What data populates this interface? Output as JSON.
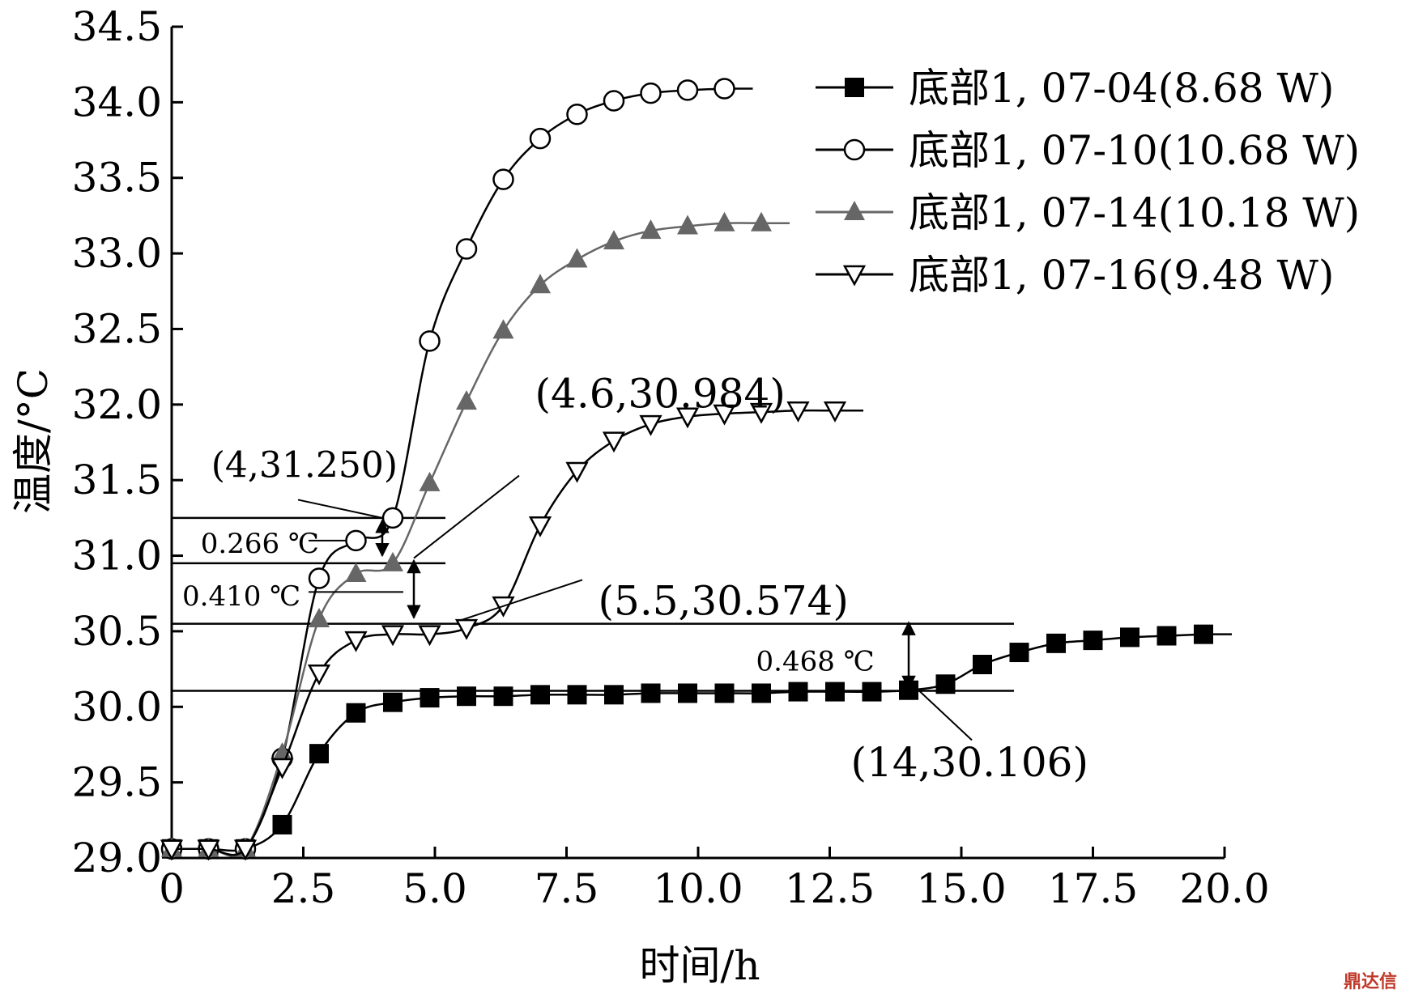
{
  "chart_data": {
    "type": "line",
    "title": "",
    "xlabel": "时间/h",
    "ylabel": "温度/°C",
    "xlim": [
      0,
      20
    ],
    "ylim": [
      29.0,
      34.5
    ],
    "xticks": [
      0,
      2.5,
      5,
      7.5,
      10,
      12.5,
      15,
      17.5,
      20
    ],
    "xtick_labels": [
      "0",
      "2.5",
      "5.0",
      "7.5",
      "10.0",
      "12.5",
      "15.0",
      "17.5",
      "20.0"
    ],
    "yticks": [
      29.0,
      29.5,
      30.0,
      30.5,
      31.0,
      31.5,
      32.0,
      32.5,
      33.0,
      33.5,
      34.0,
      34.5
    ],
    "ytick_labels": [
      "29.0",
      "29.5",
      "30.0",
      "30.5",
      "31.0",
      "31.5",
      "32.0",
      "32.5",
      "33.0",
      "33.5",
      "34.0",
      "34.5"
    ],
    "grid": false,
    "legend_position": "top-right",
    "series": [
      {
        "name": "底部1, 07-04(8.68 W)",
        "marker": "filled-square",
        "color": "#000000",
        "x": [
          0,
          0.7,
          1.4,
          2.1,
          2.8,
          3.5,
          4.2,
          4.9,
          5.6,
          6.3,
          7.0,
          7.7,
          8.4,
          9.1,
          9.8,
          10.5,
          11.2,
          11.9,
          12.6,
          13.3,
          14.0,
          14.7,
          15.4,
          16.1,
          16.8,
          17.5,
          18.2,
          18.9,
          19.6
        ],
        "y": [
          29.06,
          29.06,
          29.06,
          29.22,
          29.69,
          29.96,
          30.03,
          30.06,
          30.07,
          30.07,
          30.08,
          30.08,
          30.08,
          30.09,
          30.09,
          30.09,
          30.09,
          30.1,
          30.1,
          30.1,
          30.11,
          30.15,
          30.28,
          30.36,
          30.42,
          30.44,
          30.46,
          30.47,
          30.48
        ]
      },
      {
        "name": "底部1, 07-10(10.68 W)",
        "marker": "open-circle",
        "color": "#000000",
        "x": [
          0,
          0.7,
          1.4,
          2.1,
          2.8,
          3.5,
          4.2,
          4.9,
          5.6,
          6.3,
          7.0,
          7.7,
          8.4,
          9.1,
          9.8,
          10.5
        ],
        "y": [
          29.06,
          29.06,
          29.06,
          29.66,
          30.85,
          31.1,
          31.25,
          32.42,
          33.03,
          33.49,
          33.76,
          33.92,
          34.01,
          34.06,
          34.08,
          34.09
        ]
      },
      {
        "name": "底部1, 07-14(10.18 W)",
        "marker": "filled-triangle",
        "color": "#666666",
        "x": [
          0,
          0.7,
          1.4,
          2.1,
          2.8,
          3.5,
          4.2,
          4.9,
          5.6,
          6.3,
          7.0,
          7.7,
          8.4,
          9.1,
          9.8,
          10.5,
          11.2
        ],
        "y": [
          29.06,
          29.06,
          29.06,
          29.69,
          30.58,
          30.88,
          30.95,
          31.48,
          32.02,
          32.49,
          32.79,
          32.96,
          33.08,
          33.15,
          33.18,
          33.2,
          33.2
        ]
      },
      {
        "name": "底部1, 07-16(9.48 W)",
        "marker": "open-triangle-down",
        "color": "#000000",
        "x": [
          0,
          0.7,
          1.4,
          2.1,
          2.8,
          3.5,
          4.2,
          4.9,
          5.6,
          6.3,
          7.0,
          7.7,
          8.4,
          9.1,
          9.8,
          10.5,
          11.2,
          11.9,
          12.6
        ],
        "y": [
          29.06,
          29.06,
          29.06,
          29.6,
          30.22,
          30.44,
          30.48,
          30.48,
          30.52,
          30.67,
          31.2,
          31.56,
          31.76,
          31.87,
          31.92,
          31.94,
          31.95,
          31.96,
          31.96
        ]
      }
    ],
    "reference_lines": [
      {
        "y": 31.25,
        "x_range": [
          0,
          5.2
        ]
      },
      {
        "y": 30.95,
        "x_range": [
          0,
          5.2
        ]
      },
      {
        "y": 30.55,
        "x_range": [
          0,
          16.0
        ]
      },
      {
        "y": 30.106,
        "x_range": [
          0,
          16.0
        ]
      }
    ],
    "annotations": [
      {
        "text": "(4,31.250)",
        "x": 4.0,
        "y": 31.25
      },
      {
        "text": "(4.6,30.984)",
        "x": 4.6,
        "y": 30.984
      },
      {
        "text": "(5.5,30.574)",
        "x": 5.5,
        "y": 30.574
      },
      {
        "text": "(14,30.106)",
        "x": 14.0,
        "y": 30.106
      },
      {
        "text": "0.266 ℃",
        "x": 4.0,
        "y": 31.1
      },
      {
        "text": "0.410 ℃",
        "x": 4.6,
        "y": 30.76
      },
      {
        "text": "0.468 ℃",
        "x": 14.0,
        "y": 30.33
      }
    ]
  },
  "watermark": "鼎达信"
}
